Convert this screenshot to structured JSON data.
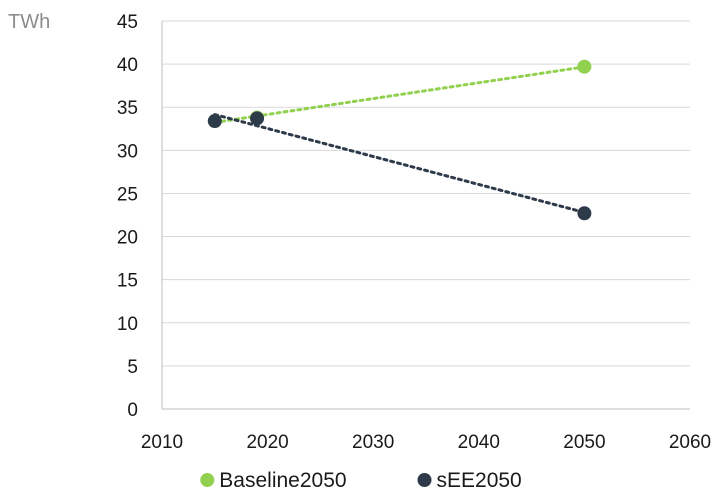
{
  "chart_data": {
    "type": "scatter",
    "unit_label": "TWh",
    "xlim": [
      2010,
      2060
    ],
    "ylim": [
      0,
      45
    ],
    "x_ticks": [
      2010,
      2020,
      2030,
      2040,
      2050,
      2060
    ],
    "y_ticks": [
      0,
      5,
      10,
      15,
      20,
      25,
      30,
      35,
      40,
      45
    ],
    "grid": "horizontal",
    "legend_position": "bottom",
    "trendlines": "linear-dotted",
    "series": [
      {
        "name": "Baseline2050",
        "color": "#92d050",
        "points": [
          {
            "x": 2015,
            "y": 33.4
          },
          {
            "x": 2019,
            "y": 33.8
          },
          {
            "x": 2050,
            "y": 39.7
          }
        ]
      },
      {
        "name": "sEE2050",
        "color": "#2d3a4a",
        "points": [
          {
            "x": 2015,
            "y": 33.4
          },
          {
            "x": 2019,
            "y": 33.7
          },
          {
            "x": 2050,
            "y": 22.7
          }
        ]
      }
    ]
  }
}
